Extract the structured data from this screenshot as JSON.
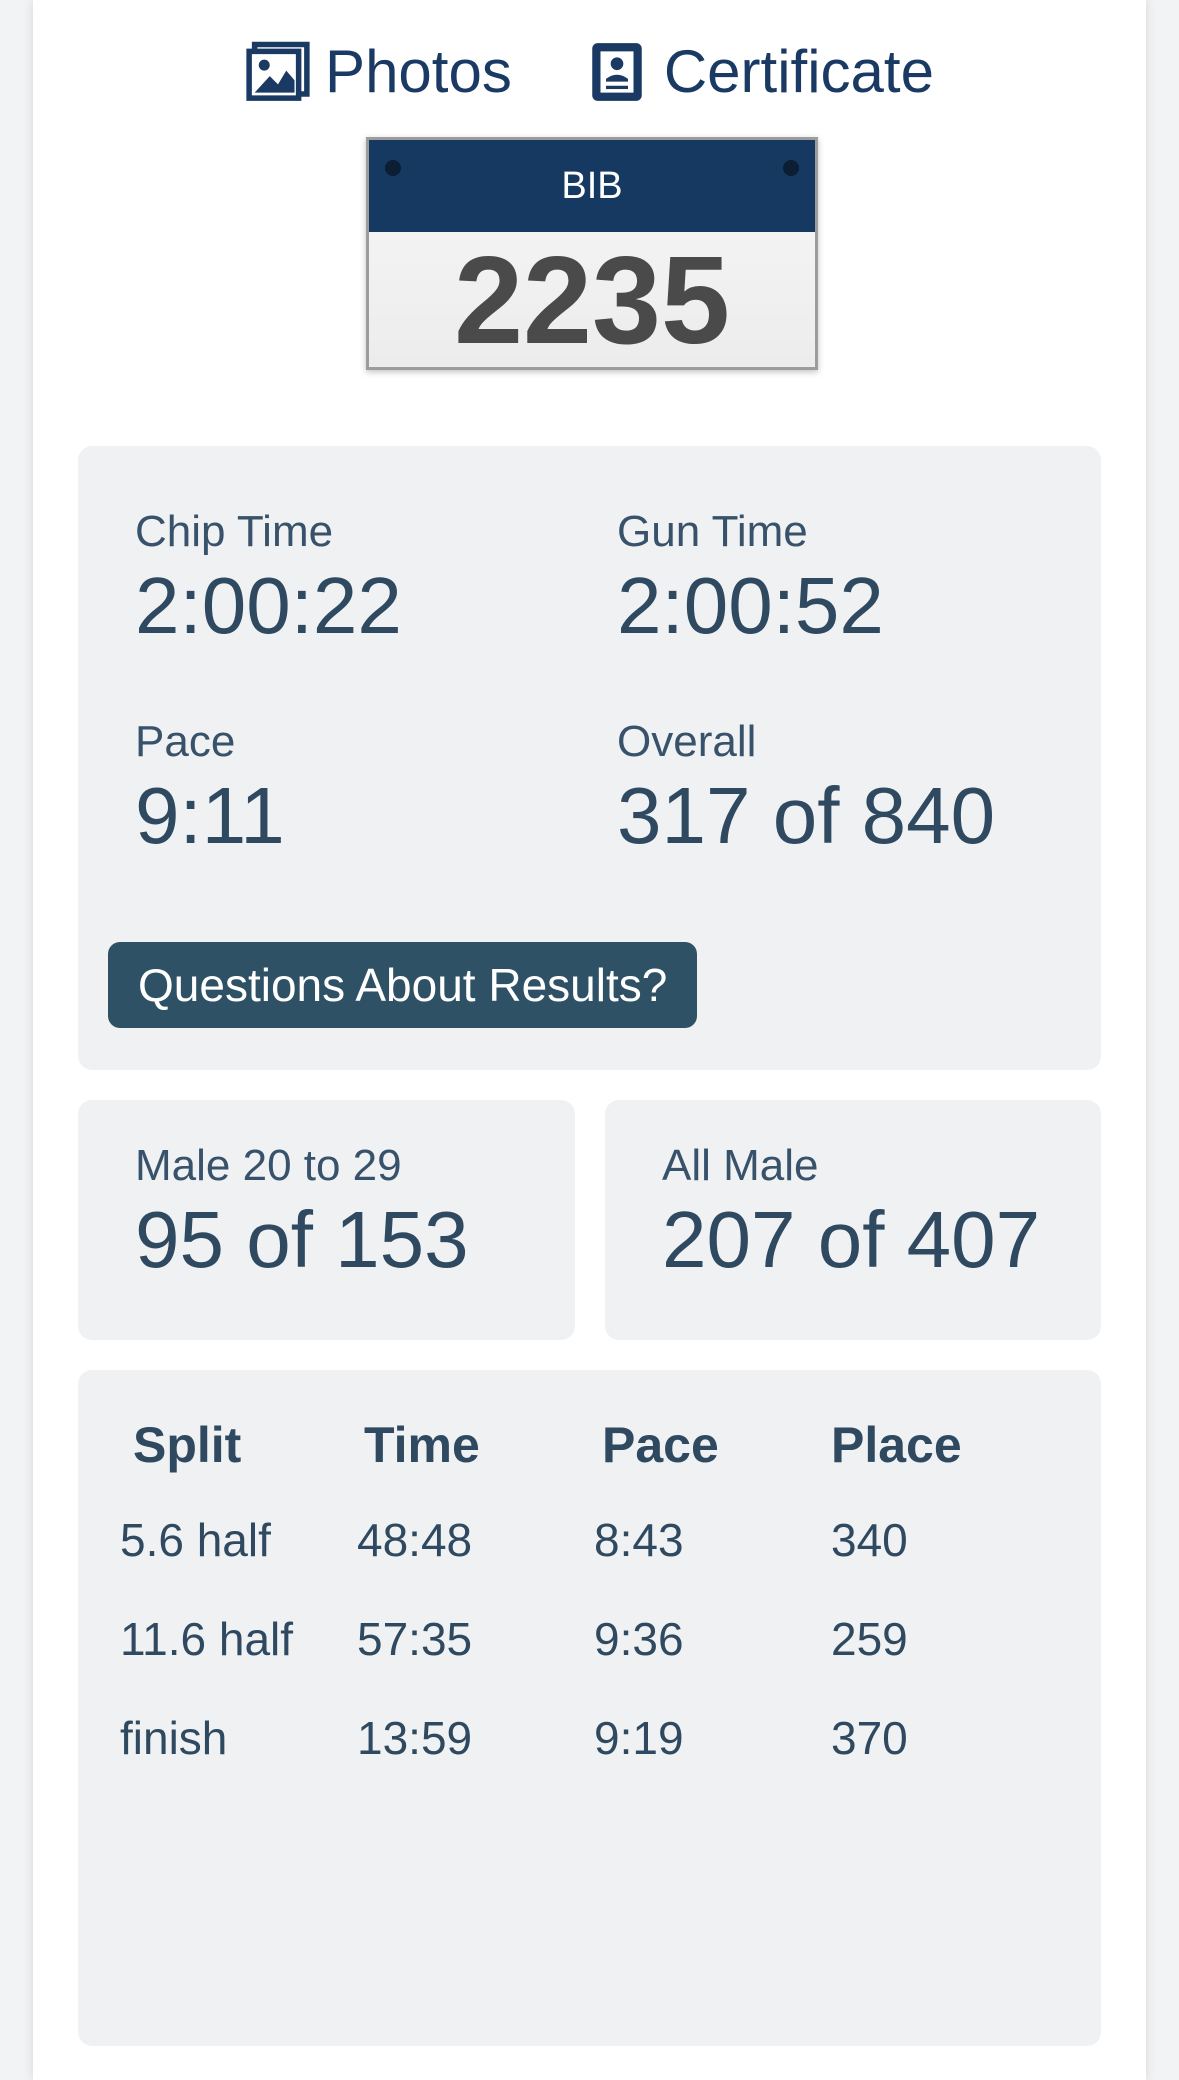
{
  "links": {
    "photos_label": "Photos",
    "photos_icon": "image-icon",
    "certificate_label": "Certificate",
    "certificate_icon": "certificate-icon"
  },
  "bib": {
    "header": "BIB",
    "number": "2235"
  },
  "stats": {
    "chip_time_label": "Chip Time",
    "chip_time_value": "2:00:22",
    "gun_time_label": "Gun Time",
    "gun_time_value": "2:00:52",
    "pace_label": "Pace",
    "pace_value": "9:11",
    "overall_label": "Overall",
    "overall_value": "317 of 840"
  },
  "questions_button": "Questions About Results?",
  "division": {
    "label": "Male 20 to 29",
    "value": "95 of 153"
  },
  "gender": {
    "label": "All Male",
    "value": "207 of 407"
  },
  "splits": {
    "headers": [
      "Split",
      "Time",
      "Pace",
      "Place"
    ],
    "rows": [
      [
        "5.6 half",
        "48:48",
        "8:43",
        "340"
      ],
      [
        "11.6 half",
        "57:35",
        "9:36",
        "259"
      ],
      [
        "finish",
        "13:59",
        "9:19",
        "370"
      ]
    ]
  },
  "colors": {
    "brand_navy": "#163961",
    "button": "#2f5166",
    "text": "#2f4a60",
    "panel_bg": "#f0f1f3"
  }
}
